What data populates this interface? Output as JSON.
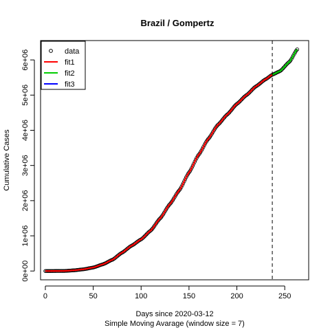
{
  "chart_data": {
    "type": "scatter",
    "title": "Brazil / Gompertz",
    "xlabel": "Days since 2020-03-12",
    "xlabel2": "Simple Moving Avarage (window size = 7)",
    "ylabel": "Cumulative Cases",
    "xlim": [
      -5,
      275
    ],
    "ylim": [
      -250000,
      6550000
    ],
    "xticks": [
      0,
      50,
      100,
      150,
      200,
      250
    ],
    "xtick_labels": [
      "0",
      "50",
      "100",
      "150",
      "200",
      "250"
    ],
    "yticks": [
      0,
      1000000,
      2000000,
      3000000,
      4000000,
      5000000,
      6000000
    ],
    "ytick_labels": [
      "0e+00",
      "1e+06",
      "2e+06",
      "3e+06",
      "4e+06",
      "5e+06",
      "6e+06"
    ],
    "vline_x": 237,
    "legend": {
      "position": "top-left",
      "entries": [
        {
          "label": "data",
          "kind": "point",
          "color": "#000000"
        },
        {
          "label": "fit1",
          "kind": "line",
          "color": "#ff0000"
        },
        {
          "label": "fit2",
          "kind": "line",
          "color": "#00cd00"
        },
        {
          "label": "fit3",
          "kind": "line",
          "color": "#0000ff"
        }
      ]
    },
    "data_series": {
      "name": "data",
      "x_start": 0,
      "x_end": 263,
      "knots": [
        [
          0,
          0
        ],
        [
          20,
          3000
        ],
        [
          30,
          20000
        ],
        [
          40,
          50000
        ],
        [
          50,
          100000
        ],
        [
          60,
          190000
        ],
        [
          70,
          320000
        ],
        [
          80,
          520000
        ],
        [
          90,
          720000
        ],
        [
          100,
          900000
        ],
        [
          110,
          1150000
        ],
        [
          120,
          1500000
        ],
        [
          130,
          1900000
        ],
        [
          140,
          2300000
        ],
        [
          150,
          2800000
        ],
        [
          160,
          3300000
        ],
        [
          170,
          3750000
        ],
        [
          180,
          4150000
        ],
        [
          190,
          4450000
        ],
        [
          200,
          4750000
        ],
        [
          210,
          5000000
        ],
        [
          220,
          5250000
        ],
        [
          230,
          5450000
        ],
        [
          237,
          5580000
        ],
        [
          245,
          5680000
        ],
        [
          255,
          5950000
        ],
        [
          263,
          6300000
        ]
      ]
    },
    "fit1": {
      "name": "fit1",
      "color": "#ff0000",
      "x_start": 0,
      "x_end": 237
    },
    "fit2": {
      "name": "fit2",
      "color": "#00cd00",
      "x_start": 237,
      "x_end": 263
    }
  }
}
